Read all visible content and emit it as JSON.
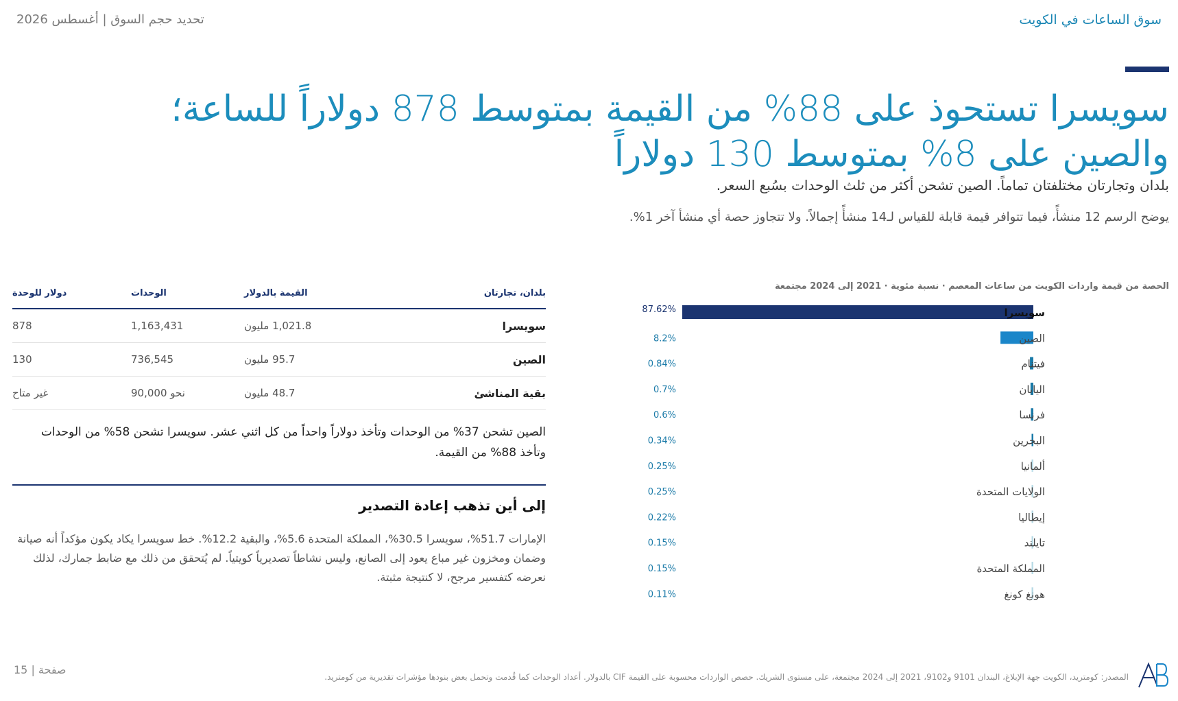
{
  "header": {
    "left": "تحديد حجم السوق | أغسطس 2026",
    "right": "سوق الساعات في الكويت"
  },
  "headline": {
    "line1": "سويسرا تستحوذ على 88% من القيمة بمتوسط 878 دولاراً للساعة؛",
    "line2": "والصين على 8% بمتوسط 130 دولاراً"
  },
  "subhead": "بلدان وتجارتان مختلفتان تماماً. الصين تشحن أكثر من ثلث الوحدات بسُبع السعر.",
  "note": "يوضح الرسم 12 منشأً، فيما تتوافر قيمة قابلة للقياس لـ14 منشأً إجمالاً. ولا تتجاوز حصة أي منشأ آخر 1%.",
  "chart_data": {
    "type": "bar",
    "title": "الحصة من قيمة واردات الكويت من ساعات المعصم · نسبة مئوية · 2021 إلى 2024 مجتمعة",
    "categories": [
      "سويسرا",
      "الصين",
      "فيتنام",
      "اليابان",
      "فرنسا",
      "البحرين",
      "ألمانيا",
      "الولايات المتحدة",
      "إيطاليا",
      "تايلند",
      "المملكة المتحدة",
      "هونغ كونغ"
    ],
    "values": [
      87.62,
      8.2,
      0.84,
      0.7,
      0.6,
      0.34,
      0.25,
      0.25,
      0.22,
      0.15,
      0.15,
      0.11
    ],
    "value_labels": [
      "87.62%",
      "8.2%",
      "0.84%",
      "0.7%",
      "0.6%",
      "0.34%",
      "0.25%",
      "0.25%",
      "0.22%",
      "0.15%",
      "0.15%",
      "0.11%"
    ],
    "xlim": [
      0,
      87.62
    ],
    "colors": {
      "highlight": "#1b3470",
      "secondary": "#1a86c9",
      "small": "#1a7aa8",
      "tiny": "#b9dbe6",
      "label": "#1a7aa8"
    }
  },
  "table": {
    "headers": [
      "بلدان، تجارتان",
      "القيمة بالدولار",
      "الوحدات",
      "دولار للوحدة"
    ],
    "rows": [
      [
        "سويسرا",
        "1,021.8 مليون",
        "1,163,431",
        "878"
      ],
      [
        "الصين",
        "95.7 مليون",
        "736,545",
        "130"
      ],
      [
        "بقية المناشئ",
        "48.7 مليون",
        "نحو 90,000",
        "غير متاح"
      ]
    ]
  },
  "china_note": "الصين تشحن 37% من الوحدات وتأخذ دولاراً واحداً من كل اثني عشر. سويسرا تشحن 58% من الوحدات وتأخذ 88% من القيمة.",
  "reexport": {
    "title": "إلى أين تذهب إعادة التصدير",
    "body": "الإمارات 51.7%، سويسرا 30.5%، المملكة المتحدة 5.6%، والبقية 12.2%. خط سويسرا يكاد يكون مؤكداً أنه صيانة وضمان ومخزون غير مباع يعود إلى الصانع، وليس نشاطاً تصديرياً كويتياً. لم يُتحقق من ذلك مع ضابط جمارك، لذلك نعرضه كتفسير مرجح، لا كنتيجة مثبتة."
  },
  "footer": {
    "source": "المصدر: كومتريد، الكويت جهة الإبلاغ، البندان 9101 و9102، 2021 إلى 2024 مجتمعة، على مستوى الشريك. حصص الواردات محسوبة على القيمة CIF بالدولار. أعداد الوحدات كما قُدمت وتحمل بعض بنودها مؤشرات تقديرية من كومتريد.",
    "page": "صفحة | 15"
  },
  "icons": {
    "logo": "ab-logo-icon"
  }
}
